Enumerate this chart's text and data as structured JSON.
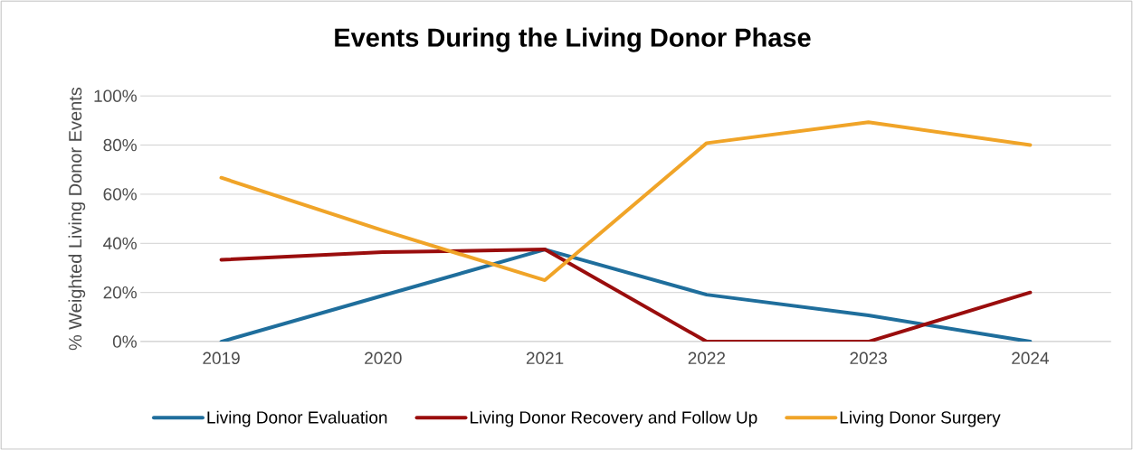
{
  "chart_data": {
    "type": "line",
    "title": "Events During the Living Donor Phase",
    "ylabel": "% Weighted Living Donor Events",
    "categories": [
      "2019",
      "2020",
      "2021",
      "2022",
      "2023",
      "2024"
    ],
    "series": [
      {
        "name": "Living Donor Evaluation",
        "color": "#1f6e9c",
        "values": [
          0,
          18.8,
          37.5,
          19.1,
          10.7,
          0
        ]
      },
      {
        "name": "Living Donor Recovery and Follow Up",
        "color": "#9a0d0d",
        "values": [
          33.3,
          36.4,
          37.5,
          0,
          0,
          20
        ]
      },
      {
        "name": "Living Donor Surgery",
        "color": "#f0a428",
        "values": [
          66.7,
          45.2,
          25,
          80.8,
          89.3,
          80
        ]
      }
    ],
    "ylim": [
      0,
      100
    ],
    "yticks": [
      {
        "value": 0,
        "label": "0%"
      },
      {
        "value": 20,
        "label": "20%"
      },
      {
        "value": 40,
        "label": "40%"
      },
      {
        "value": 60,
        "label": "60%"
      },
      {
        "value": 80,
        "label": "80%"
      },
      {
        "value": 100,
        "label": "100%"
      }
    ],
    "grid": "y",
    "legend": "bottom",
    "marker": "none",
    "line_style": "solid"
  }
}
